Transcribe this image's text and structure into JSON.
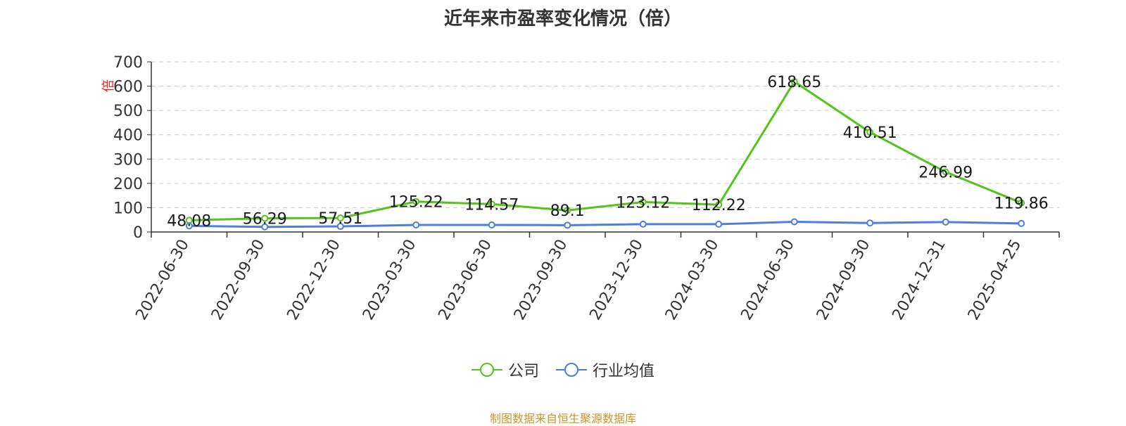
{
  "chart_data": {
    "type": "line",
    "title": "近年来市盈率变化情况（倍）",
    "ylabel": "倍",
    "xlabel": "",
    "ylim": [
      0,
      700
    ],
    "yticks": [
      0,
      100,
      200,
      300,
      400,
      500,
      600,
      700
    ],
    "categories": [
      "2022-06-30",
      "2022-09-30",
      "2022-12-30",
      "2023-03-30",
      "2023-06-30",
      "2023-09-30",
      "2023-12-30",
      "2024-03-30",
      "2024-06-30",
      "2024-09-30",
      "2024-12-31",
      "2025-04-25"
    ],
    "series": [
      {
        "name": "公司",
        "color": "#52c41a",
        "values": [
          48.08,
          56.29,
          57.51,
          125.22,
          114.57,
          89.1,
          123.12,
          112.22,
          618.65,
          410.51,
          246.99,
          119.86
        ],
        "labels": [
          "48.08",
          "56.29",
          "57.51",
          "125.22",
          "114.57",
          "89.1",
          "123.12",
          "112.22",
          "618.65",
          "410.51",
          "246.99",
          "119.86"
        ]
      },
      {
        "name": "行业均值",
        "color": "#4a7fe0",
        "values": [
          25,
          21,
          23,
          29,
          29,
          28,
          32,
          32,
          42,
          37,
          41,
          35
        ]
      }
    ],
    "grid": true,
    "legend_position": "bottom-center"
  },
  "source_note": "制图数据来自恒生聚源数据库"
}
